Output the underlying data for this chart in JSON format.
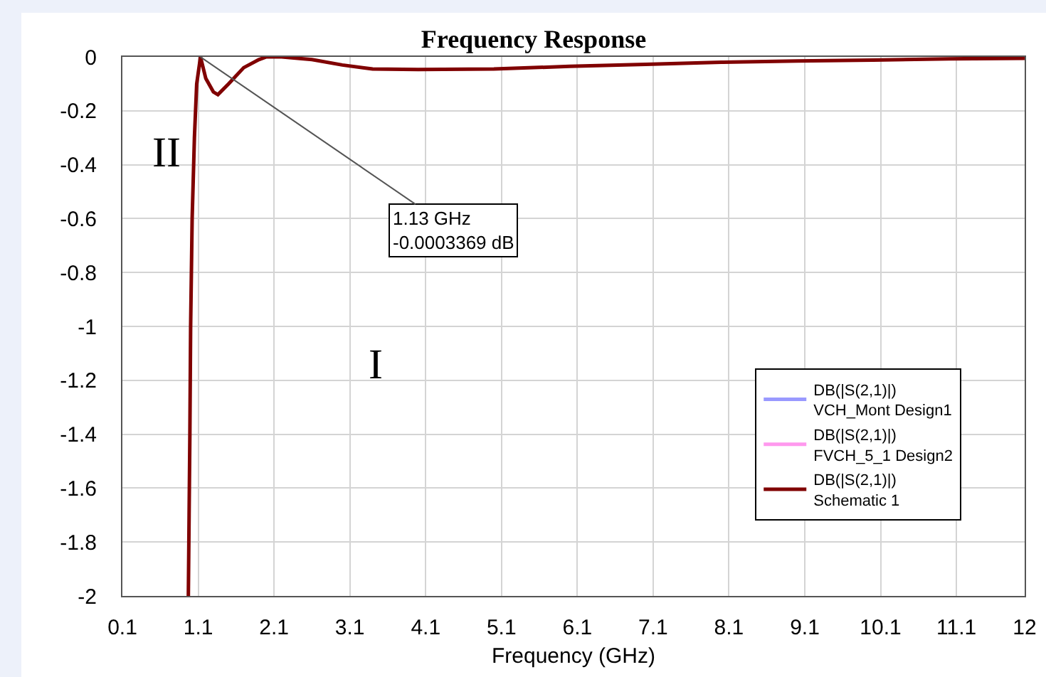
{
  "chart_data": {
    "type": "line",
    "title": "Frequency Response",
    "xlabel": "Frequency (GHz)",
    "x": [
      0.97,
      0.98,
      0.99,
      1.0,
      1.02,
      1.05,
      1.08,
      1.13,
      1.2,
      1.3,
      1.36,
      1.5,
      1.7,
      1.9,
      2.0,
      2.2,
      2.6,
      3.0,
      3.4,
      4.0,
      5.0,
      6.0,
      7.0,
      8.0,
      9.0,
      10.0,
      11.0,
      12.0
    ],
    "series": [
      {
        "name": "DB(|S(2,1)|)\nVCH_Mont Design1",
        "color": "#9999ff",
        "values": [
          null,
          null,
          null,
          null,
          null,
          null,
          null,
          null,
          null,
          null,
          null,
          null,
          null,
          null,
          null,
          null,
          null,
          null,
          null,
          null,
          null,
          null,
          null,
          null,
          null,
          null,
          null,
          null
        ]
      },
      {
        "name": "DB(|S(2,1)|)\nFVCH_5_1 Design2",
        "color": "#ff99ee",
        "values": [
          null,
          null,
          null,
          null,
          null,
          null,
          null,
          null,
          null,
          null,
          null,
          null,
          null,
          null,
          null,
          null,
          null,
          null,
          null,
          null,
          null,
          null,
          null,
          null,
          null,
          null,
          null,
          null
        ]
      },
      {
        "name": "DB(|S(2,1)|)\nSchematic 1",
        "color": "#800000",
        "values": [
          -2,
          -1.7,
          -1.4,
          -1.0,
          -0.6,
          -0.3,
          -0.1,
          -0.0003369,
          -0.08,
          -0.13,
          -0.14,
          -0.1,
          -0.04,
          -0.01,
          0,
          0,
          -0.01,
          -0.03,
          -0.045,
          -0.047,
          -0.045,
          -0.035,
          -0.028,
          -0.02,
          -0.015,
          -0.012,
          -0.007,
          -0.005
        ]
      }
    ],
    "xlim": [
      0.1,
      12
    ],
    "xticks": [
      0.1,
      1.1,
      2.1,
      3.1,
      4.1,
      5.1,
      6.1,
      7.1,
      8.1,
      9.1,
      10.1,
      11.1,
      12
    ],
    "ylim": [
      -2,
      0
    ],
    "yticks": [
      0,
      -0.2,
      -0.4,
      -0.6,
      -0.8,
      -1,
      -1.2,
      -1.4,
      -1.6,
      -1.8,
      -2
    ],
    "grid": true,
    "legend": "bottom right",
    "marker": "none",
    "line_style": "solid",
    "annotations": [
      {
        "text": "1.13 GHz\n-0.0003369 dB",
        "x": 1.13,
        "y": -0.0003369
      },
      "II",
      "I"
    ]
  }
}
